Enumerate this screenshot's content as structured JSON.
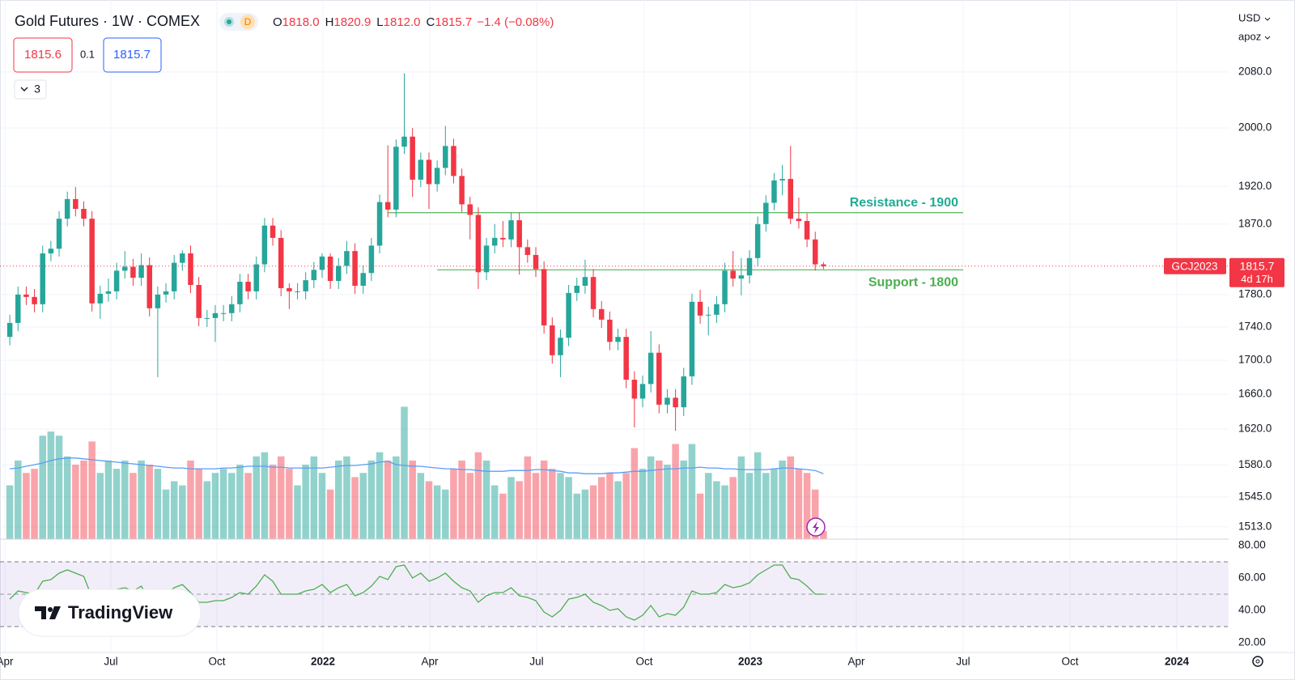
{
  "header": {
    "title": "Gold Futures · 1W · COMEX",
    "badge": "D",
    "ohlc": [
      {
        "key": "O",
        "text": "1818.0"
      },
      {
        "key": "H",
        "text": "1820.9"
      },
      {
        "key": "L",
        "text": "1812.0"
      },
      {
        "key": "C",
        "text": "1815.7"
      }
    ],
    "change": "−1.4 (−0.08%)",
    "bid": "1815.6",
    "spread": "0.1",
    "ask": "1815.7",
    "indicators": "3",
    "currency": "USD",
    "user": "apoz",
    "logo": "TradingView"
  },
  "chart_data": {
    "type": "candlestick",
    "log_scale": true,
    "grid": true,
    "up_color": "#26a69a",
    "down_color": "#f23645",
    "open": [
      1728,
      1745,
      1780,
      1777,
      1768,
      1832,
      1838,
      1877,
      1903,
      1890,
      1877,
      1769,
      1781,
      1784,
      1810,
      1815,
      1801,
      1817,
      1763,
      1780,
      1784,
      1820,
      1832,
      1792,
      1751,
      1751,
      1757,
      1757,
      1768,
      1796,
      1784,
      1818,
      1868,
      1852,
      1788,
      1784,
      1784,
      1798,
      1811,
      1828,
      1797,
      1816,
      1835,
      1791,
      1807,
      1842,
      1899,
      1889,
      1974,
      1988,
      1929,
      1956,
      1923,
      1945,
      1975,
      1934,
      1896,
      1882,
      1808,
      1842,
      1852,
      1850,
      1875,
      1840,
      1830,
      1812,
      1742,
      1706,
      1727,
      1782,
      1791,
      1802,
      1762,
      1749,
      1722,
      1728,
      1677,
      1655,
      1672,
      1709,
      1648,
      1656,
      1645,
      1681,
      1771,
      1754,
      1755,
      1768,
      1810,
      1800,
      1804,
      1826,
      1870,
      1898,
      1928,
      1930,
      1877,
      1874,
      1850,
      1818
    ],
    "high": [
      1755,
      1790,
      1790,
      1787,
      1842,
      1848,
      1887,
      1913,
      1919,
      1900,
      1887,
      1791,
      1800,
      1820,
      1835,
      1825,
      1832,
      1827,
      1790,
      1794,
      1830,
      1836,
      1842,
      1802,
      1761,
      1767,
      1767,
      1778,
      1806,
      1806,
      1828,
      1878,
      1878,
      1862,
      1794,
      1794,
      1808,
      1821,
      1832,
      1832,
      1826,
      1848,
      1845,
      1817,
      1852,
      1909,
      1976,
      1984,
      2078,
      2000,
      1966,
      1966,
      1955,
      2003,
      1985,
      1944,
      1906,
      1892,
      1852,
      1870,
      1874,
      1885,
      1885,
      1850,
      1840,
      1822,
      1752,
      1737,
      1792,
      1801,
      1824,
      1812,
      1772,
      1759,
      1738,
      1738,
      1687,
      1682,
      1735,
      1719,
      1666,
      1666,
      1691,
      1781,
      1786,
      1765,
      1778,
      1820,
      1835,
      1826,
      1836,
      1880,
      1908,
      1938,
      1949,
      1975,
      1905,
      1884,
      1860,
      1820.9
    ],
    "low": [
      1718,
      1735,
      1767,
      1758,
      1758,
      1822,
      1828,
      1867,
      1880,
      1867,
      1759,
      1750,
      1771,
      1774,
      1800,
      1791,
      1791,
      1753,
      1680,
      1770,
      1774,
      1810,
      1782,
      1741,
      1740,
      1722,
      1747,
      1747,
      1758,
      1774,
      1774,
      1808,
      1842,
      1778,
      1762,
      1774,
      1774,
      1788,
      1801,
      1787,
      1787,
      1806,
      1781,
      1781,
      1797,
      1832,
      1879,
      1879,
      1964,
      1906,
      1919,
      1890,
      1913,
      1935,
      1924,
      1886,
      1850,
      1787,
      1798,
      1832,
      1840,
      1840,
      1805,
      1820,
      1802,
      1732,
      1696,
      1680,
      1717,
      1772,
      1781,
      1752,
      1739,
      1712,
      1712,
      1667,
      1622,
      1645,
      1662,
      1638,
      1638,
      1618,
      1635,
      1671,
      1744,
      1730,
      1745,
      1758,
      1790,
      1779,
      1794,
      1816,
      1860,
      1888,
      1908,
      1870,
      1864,
      1840,
      1810,
      1812
    ],
    "close": [
      1745,
      1780,
      1777,
      1768,
      1832,
      1838,
      1877,
      1903,
      1890,
      1877,
      1769,
      1781,
      1784,
      1810,
      1815,
      1801,
      1817,
      1763,
      1780,
      1784,
      1820,
      1832,
      1792,
      1751,
      1751,
      1757,
      1757,
      1768,
      1796,
      1784,
      1818,
      1868,
      1852,
      1788,
      1784,
      1784,
      1798,
      1811,
      1828,
      1797,
      1816,
      1835,
      1791,
      1807,
      1842,
      1899,
      1889,
      1974,
      1988,
      1929,
      1956,
      1923,
      1945,
      1975,
      1934,
      1896,
      1882,
      1808,
      1842,
      1852,
      1850,
      1875,
      1840,
      1830,
      1812,
      1742,
      1706,
      1727,
      1782,
      1791,
      1802,
      1762,
      1749,
      1722,
      1728,
      1677,
      1655,
      1672,
      1709,
      1648,
      1656,
      1645,
      1681,
      1771,
      1754,
      1755,
      1768,
      1810,
      1800,
      1804,
      1826,
      1870,
      1898,
      1928,
      1930,
      1877,
      1874,
      1850,
      1818,
      1815.7
    ],
    "ylim": [
      1500,
      2180
    ],
    "yticks": [
      {
        "value": 1513,
        "label": "1513.0"
      },
      {
        "value": 1545,
        "label": "1545.0"
      },
      {
        "value": 1580,
        "label": "1580.0"
      },
      {
        "value": 1620,
        "label": "1620.0"
      },
      {
        "value": 1660,
        "label": "1660.0"
      },
      {
        "value": 1700,
        "label": "1700.0"
      },
      {
        "value": 1740,
        "label": "1740.0"
      },
      {
        "value": 1780,
        "label": "1780.0"
      },
      {
        "value": 1870,
        "label": "1870.0"
      },
      {
        "value": 1920,
        "label": "1920.0"
      },
      {
        "value": 2000,
        "label": "2000.0"
      },
      {
        "value": 2080,
        "label": "2080.0"
      }
    ],
    "xlim": [
      -0.7,
      148.3
    ],
    "xticks": [
      {
        "value": -0.6,
        "label": "Apr"
      },
      {
        "value": 12.3,
        "label": "Jul"
      },
      {
        "value": 25.2,
        "label": "Oct"
      },
      {
        "value": 38.1,
        "label": "2022"
      },
      {
        "value": 51.1,
        "label": "Apr"
      },
      {
        "value": 64.1,
        "label": "Jul"
      },
      {
        "value": 77.2,
        "label": "Oct"
      },
      {
        "value": 90.1,
        "label": "2023"
      },
      {
        "value": 103,
        "label": "Apr"
      },
      {
        "value": 116,
        "label": "Jul"
      },
      {
        "value": 129,
        "label": "Oct"
      },
      {
        "value": 142,
        "label": "2024"
      }
    ],
    "volume": {
      "ylim": [
        0,
        180
      ],
      "values": [
        65,
        95,
        80,
        85,
        125,
        130,
        125,
        100,
        90,
        95,
        118,
        80,
        95,
        85,
        95,
        80,
        95,
        90,
        85,
        60,
        70,
        65,
        95,
        85,
        70,
        80,
        85,
        80,
        90,
        80,
        100,
        105,
        90,
        100,
        85,
        65,
        90,
        100,
        80,
        60,
        95,
        100,
        75,
        80,
        95,
        105,
        95,
        100,
        160,
        95,
        80,
        70,
        65,
        60,
        85,
        95,
        80,
        105,
        95,
        65,
        55,
        75,
        70,
        100,
        80,
        95,
        85,
        80,
        75,
        55,
        60,
        65,
        75,
        80,
        70,
        80,
        110,
        85,
        100,
        95,
        90,
        115,
        95,
        115,
        55,
        80,
        70,
        65,
        75,
        100,
        80,
        105,
        80,
        85,
        95,
        100,
        85,
        80,
        60,
        10
      ],
      "ma": {
        "color": "#5b9cf6",
        "values": [
          85,
          86,
          88,
          90,
          92,
          95,
          97,
          98,
          98,
          97,
          96,
          95,
          94,
          93,
          92,
          91,
          90,
          89,
          88,
          87,
          86,
          86,
          85,
          85,
          85,
          85,
          86,
          86,
          87,
          88,
          88,
          88,
          87,
          87,
          86,
          86,
          86,
          86,
          86,
          87,
          88,
          89,
          89,
          90,
          91,
          93,
          94,
          90,
          89,
          88,
          88,
          87,
          86,
          85,
          85,
          84,
          84,
          83,
          82,
          82,
          82,
          83,
          83,
          83,
          84,
          84,
          83,
          82,
          80,
          80,
          79,
          79,
          79,
          80,
          80,
          81,
          82,
          82,
          83,
          84,
          85,
          85,
          86,
          86,
          87,
          86,
          86,
          85,
          85,
          84,
          84,
          84,
          84,
          85,
          86,
          86,
          85,
          84,
          83,
          79
        ]
      }
    },
    "rsi": {
      "color": "#4caf50",
      "ylim": [
        14,
        83
      ],
      "band": [
        30,
        70
      ],
      "midline": 50,
      "yticks": [
        {
          "value": 20,
          "label": "20.00"
        },
        {
          "value": 40,
          "label": "40.00"
        },
        {
          "value": 60,
          "label": "60.00"
        },
        {
          "value": 80,
          "label": "80.00"
        }
      ],
      "values": [
        47,
        52,
        51,
        50,
        58,
        59,
        63,
        65,
        63,
        61,
        48,
        50,
        51,
        53,
        54,
        52,
        55,
        46,
        49,
        50,
        54,
        56,
        51,
        45,
        45,
        46,
        46,
        48,
        51,
        50,
        55,
        62,
        58,
        50,
        50,
        50,
        52,
        53,
        56,
        51,
        54,
        56,
        49,
        51,
        55,
        61,
        59,
        67,
        68,
        60,
        63,
        58,
        60,
        63,
        58,
        54,
        52,
        45,
        49,
        51,
        51,
        54,
        49,
        48,
        46,
        39,
        36,
        40,
        47,
        48,
        50,
        45,
        43,
        40,
        41,
        36,
        34,
        37,
        43,
        36,
        38,
        37,
        42,
        52,
        50,
        50,
        51,
        56,
        54,
        55,
        57,
        62,
        65,
        68,
        68,
        60,
        59,
        55,
        50,
        50
      ]
    },
    "levels": [
      {
        "text": "Resistance - 1900",
        "value": 1885,
        "from": 46,
        "to": 116,
        "color": "#22ab94",
        "line_color": "#66bb6a",
        "label_side": "above"
      },
      {
        "text": "Support - 1800",
        "value": 1811,
        "from": 52,
        "to": 116,
        "color": "#4caf50",
        "line_color": "#66bb6a",
        "label_side": "below"
      }
    ],
    "last": {
      "symbol": "GCJ2023",
      "countdown": "4d 17h",
      "color": "#f23645"
    }
  }
}
